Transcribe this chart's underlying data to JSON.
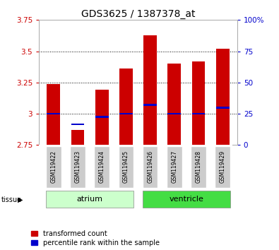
{
  "title": "GDS3625 / 1387378_at",
  "samples": [
    "GSM119422",
    "GSM119423",
    "GSM119424",
    "GSM119425",
    "GSM119426",
    "GSM119427",
    "GSM119428",
    "GSM119429"
  ],
  "red_values": [
    3.24,
    2.87,
    3.19,
    3.36,
    3.63,
    3.4,
    3.42,
    3.52
  ],
  "blue_values": [
    3.0,
    2.915,
    2.975,
    3.0,
    3.07,
    3.0,
    3.0,
    3.05
  ],
  "baseline": 2.75,
  "ylim_left": [
    2.75,
    3.75
  ],
  "yticks_left": [
    2.75,
    3.0,
    3.25,
    3.5,
    3.75
  ],
  "ytick_labels_left": [
    "2.75",
    "3",
    "3.25",
    "3.5",
    "3.75"
  ],
  "yticks_right_pct": [
    0,
    25,
    50,
    75,
    100
  ],
  "ytick_labels_right": [
    "0",
    "25",
    "50",
    "75",
    "100%"
  ],
  "atrium_indices": [
    0,
    1,
    2,
    3
  ],
  "ventricle_indices": [
    4,
    5,
    6,
    7
  ],
  "atrium_color": "#ccffcc",
  "ventricle_color": "#44dd44",
  "bar_color": "#cc0000",
  "blue_color": "#0000cc",
  "bar_width": 0.55,
  "label_box_color": "#cccccc",
  "left_axis_color": "#cc0000",
  "right_axis_color": "#0000cc",
  "legend_red_label": "transformed count",
  "legend_blue_label": "percentile rank within the sample",
  "title_fontsize": 10,
  "tick_fontsize": 7.5,
  "sample_fontsize": 5.5,
  "tissue_fontsize": 8,
  "legend_fontsize": 7
}
